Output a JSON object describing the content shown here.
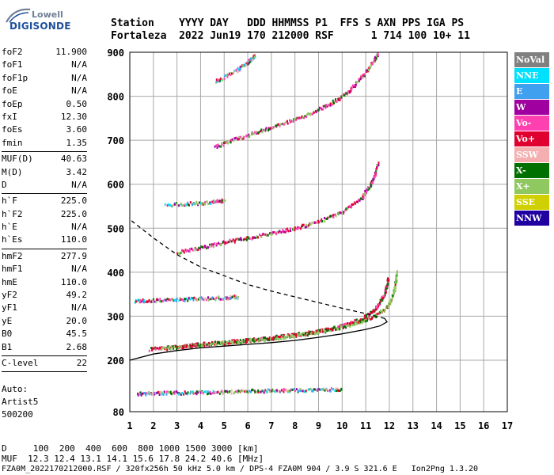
{
  "brand": {
    "top": "Lowell",
    "main": "DIGISONDE"
  },
  "header": {
    "row1": "Station    YYYY DAY   DDD HHMMSS P1  FFS S AXN PPS IGA PS",
    "row2": "Fortaleza  2022 Jun19 170 212000 RSF      1 714 100 10+ 11"
  },
  "params": {
    "group1": [
      {
        "label": "foF2",
        "value": "11.900"
      },
      {
        "label": "foF1",
        "value": "N/A"
      },
      {
        "label": "foF1p",
        "value": "N/A"
      },
      {
        "label": "foE",
        "value": "N/A"
      },
      {
        "label": "foEp",
        "value": "0.50"
      },
      {
        "label": "fxI",
        "value": "12.30"
      },
      {
        "label": "foEs",
        "value": "3.60"
      },
      {
        "label": "fmin",
        "value": "1.35"
      }
    ],
    "group2": [
      {
        "label": "MUF(D)",
        "value": "40.63"
      },
      {
        "label": "M(D)",
        "value": "3.42"
      },
      {
        "label": "D",
        "value": "N/A"
      }
    ],
    "group3": [
      {
        "label": "h`F",
        "value": "225.0"
      },
      {
        "label": "h`F2",
        "value": "225.0"
      },
      {
        "label": "h`E",
        "value": "N/A"
      },
      {
        "label": "h`Es",
        "value": "110.0"
      }
    ],
    "group4": [
      {
        "label": "hmF2",
        "value": "277.9"
      },
      {
        "label": "hmF1",
        "value": "N/A"
      },
      {
        "label": "hmE",
        "value": "110.0"
      },
      {
        "label": "yF2",
        "value": "49.2"
      },
      {
        "label": "yF1",
        "value": "N/A"
      },
      {
        "label": "yE",
        "value": "20.0"
      },
      {
        "label": "B0",
        "value": "45.5"
      },
      {
        "label": "B1",
        "value": "2.68"
      }
    ],
    "group5": [
      {
        "label": "C-level",
        "value": "22"
      }
    ]
  },
  "auto": {
    "line1": "Auto:",
    "line2": "Artist5",
    "line3": "500200"
  },
  "legend": [
    {
      "label": "NoVal",
      "bg": "#808080",
      "fg": "#ffffff"
    },
    {
      "label": "NNE",
      "bg": "#00e0ff",
      "fg": "#ffffff"
    },
    {
      "label": "E",
      "bg": "#3fa0f0",
      "fg": "#ffffff"
    },
    {
      "label": "W",
      "bg": "#a000a0",
      "fg": "#ffffff"
    },
    {
      "label": "Vo-",
      "bg": "#ff40b0",
      "fg": "#ffffff"
    },
    {
      "label": "Vo+",
      "bg": "#e00030",
      "fg": "#ffffff"
    },
    {
      "label": "SSW",
      "bg": "#f4b0b0",
      "fg": "#ffffff"
    },
    {
      "label": "X-",
      "bg": "#007000",
      "fg": "#ffffff"
    },
    {
      "label": "X+",
      "bg": "#90c860",
      "fg": "#ffffff"
    },
    {
      "label": "SSE",
      "bg": "#d0d000",
      "fg": "#ffffff"
    },
    {
      "label": "NNW",
      "bg": "#2000a0",
      "fg": "#ffffff"
    }
  ],
  "bottom": {
    "d_line": "D     100  200  400  600  800 1000 1500 3000 [km]",
    "muf_line": "MUF  12.3 12.4 13.1 14.1 15.6 17.8 24.2 40.6 [MHz]",
    "file_line": "FZA0M_2022170212000.RSF / 320fx256h 50 kHz 5.0 km / DPS-4 FZA0M 904 / 3.9 S 321.6 E   Ion2Png 1.3.20"
  },
  "chart_data": {
    "type": "scatter",
    "title": "",
    "xlabel": "",
    "ylabel": "",
    "xlim": [
      1,
      17
    ],
    "ylim": [
      80,
      900
    ],
    "x_ticks": [
      1,
      2,
      3,
      4,
      5,
      6,
      7,
      8,
      9,
      10,
      11,
      12,
      13,
      14,
      15,
      16,
      17
    ],
    "y_ticks": [
      80,
      200,
      300,
      400,
      500,
      600,
      700,
      800,
      900
    ],
    "grid": true,
    "traces": [
      {
        "name": "Es layer",
        "style": "mixed",
        "points": [
          [
            1.3,
            124
          ],
          [
            2.0,
            125
          ],
          [
            3.0,
            126
          ],
          [
            4.0,
            127
          ],
          [
            5.0,
            128
          ],
          [
            6.0,
            130
          ],
          [
            7.0,
            131
          ],
          [
            8.0,
            132
          ],
          [
            9.0,
            133
          ],
          [
            10.0,
            134
          ]
        ]
      },
      {
        "name": "F2 O-trace",
        "style": "red",
        "points": [
          [
            1.8,
            227
          ],
          [
            3.0,
            233
          ],
          [
            4.0,
            238
          ],
          [
            5.0,
            243
          ],
          [
            6.0,
            248
          ],
          [
            7.0,
            253
          ],
          [
            8.0,
            260
          ],
          [
            9.0,
            268
          ],
          [
            10.0,
            280
          ],
          [
            10.8,
            295
          ],
          [
            11.4,
            318
          ],
          [
            11.8,
            355
          ],
          [
            11.95,
            390
          ]
        ]
      },
      {
        "name": "F2 X-trace",
        "style": "green",
        "points": [
          [
            2.3,
            228
          ],
          [
            3.5,
            234
          ],
          [
            4.5,
            239
          ],
          [
            5.5,
            244
          ],
          [
            6.5,
            249
          ],
          [
            7.5,
            255
          ],
          [
            8.5,
            262
          ],
          [
            9.5,
            272
          ],
          [
            10.5,
            285
          ],
          [
            11.3,
            300
          ],
          [
            11.9,
            322
          ],
          [
            12.2,
            360
          ],
          [
            12.3,
            405
          ]
        ]
      },
      {
        "name": "Es 2nd hop",
        "style": "mixed",
        "points": [
          [
            1.2,
            337
          ],
          [
            2.0,
            338
          ],
          [
            3.0,
            340
          ],
          [
            4.0,
            342
          ],
          [
            5.0,
            344
          ],
          [
            5.6,
            346
          ]
        ]
      },
      {
        "name": "F2 2nd hop",
        "style": "pink",
        "points": [
          [
            3.0,
            447
          ],
          [
            4.0,
            458
          ],
          [
            5.0,
            470
          ],
          [
            6.0,
            480
          ],
          [
            7.0,
            490
          ],
          [
            8.0,
            502
          ],
          [
            9.0,
            517
          ],
          [
            10.0,
            540
          ],
          [
            10.8,
            570
          ],
          [
            11.3,
            610
          ],
          [
            11.5,
            650
          ]
        ]
      },
      {
        "name": "Es 3rd hop",
        "style": "mixed",
        "points": [
          [
            2.5,
            555
          ],
          [
            3.5,
            558
          ],
          [
            4.5,
            562
          ],
          [
            5.0,
            565
          ]
        ]
      },
      {
        "name": "F2 3rd hop",
        "style": "pink",
        "points": [
          [
            4.6,
            688
          ],
          [
            5.5,
            705
          ],
          [
            6.5,
            722
          ],
          [
            7.5,
            740
          ],
          [
            8.5,
            760
          ],
          [
            9.5,
            785
          ],
          [
            10.2,
            810
          ],
          [
            10.8,
            845
          ],
          [
            11.3,
            880
          ],
          [
            11.5,
            900
          ]
        ]
      },
      {
        "name": "F2 4th hop",
        "style": "mixed",
        "points": [
          [
            4.6,
            835
          ],
          [
            5.5,
            860
          ],
          [
            6.0,
            880
          ],
          [
            6.3,
            895
          ]
        ]
      }
    ],
    "profile": {
      "name": "electron density profile",
      "points": [
        [
          1.0,
          200
        ],
        [
          2.0,
          214
        ],
        [
          3.0,
          222
        ],
        [
          4.0,
          228
        ],
        [
          5.0,
          232
        ],
        [
          6.0,
          236
        ],
        [
          7.0,
          240
        ],
        [
          8.0,
          245
        ],
        [
          9.0,
          252
        ],
        [
          10.0,
          260
        ],
        [
          11.0,
          270
        ],
        [
          11.6,
          278
        ],
        [
          11.9,
          287
        ],
        [
          11.8,
          295
        ],
        [
          11.0,
          306
        ],
        [
          10.0,
          318
        ],
        [
          9.0,
          331
        ],
        [
          8.0,
          344
        ],
        [
          7.0,
          357
        ],
        [
          6.0,
          372
        ],
        [
          5.0,
          392
        ],
        [
          4.0,
          412
        ],
        [
          3.0,
          440
        ],
        [
          2.0,
          478
        ],
        [
          1.0,
          520
        ]
      ]
    }
  }
}
